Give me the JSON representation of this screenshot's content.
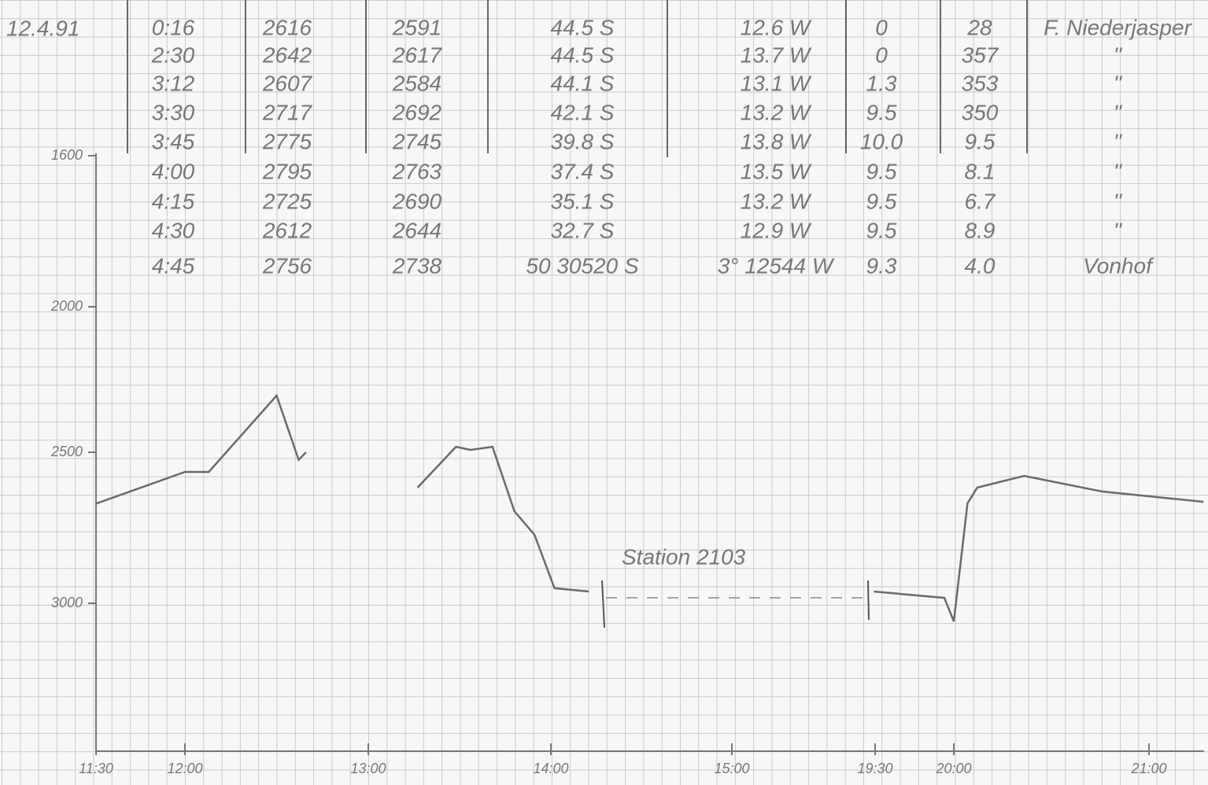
{
  "table": {
    "date": "12.4.91",
    "rows": [
      [
        "0:16",
        "2616",
        "2591",
        "44.5 S",
        "12.6 W",
        "0",
        "28",
        "F. Niederjasper"
      ],
      [
        "2:30",
        "2642",
        "2617",
        "44.5 S",
        "13.7 W",
        "0",
        "357",
        "\""
      ],
      [
        "3:12",
        "2607",
        "2584",
        "44.1 S",
        "13.1 W",
        "1.3",
        "353",
        "\""
      ],
      [
        "3:30",
        "2717",
        "2692",
        "42.1 S",
        "13.2 W",
        "9.5",
        "350",
        "\""
      ],
      [
        "3:45",
        "2775",
        "2745",
        "39.8 S",
        "13.8 W",
        "10.0",
        "9.5",
        "\""
      ],
      [
        "4:00",
        "2795",
        "2763",
        "37.4 S",
        "13.5 W",
        "9.5",
        "8.1",
        "\""
      ],
      [
        "4:15",
        "2725",
        "2690",
        "35.1 S",
        "13.2 W",
        "9.5",
        "6.7",
        "\""
      ],
      [
        "4:30",
        "2612",
        "2644",
        "32.7 S",
        "12.9 W",
        "9.5",
        "8.9",
        "\""
      ],
      [
        "4:45",
        "2756",
        "2738",
        "50 30520 S",
        "3° 12544 W",
        "9.3",
        "4.0",
        "Vonhof"
      ]
    ]
  },
  "chart_data": {
    "type": "line",
    "annotation": "Station 2103",
    "color": "#6a6a6a",
    "x": [
      11.5,
      12.0,
      12.13,
      12.5,
      12.62,
      12.66,
      null,
      13.27,
      13.48,
      13.56,
      13.68,
      13.8,
      13.91,
      14.02,
      14.21,
      null,
      19.46,
      19.94,
      20.0,
      20.07,
      20.12,
      20.36,
      20.76,
      21.28
    ],
    "values": [
      2670,
      2565,
      2565,
      2305,
      2525,
      2500,
      null,
      2617,
      2481,
      2492,
      2481,
      2695,
      2773,
      2950,
      2961,
      null,
      2961,
      2982,
      3060,
      2669,
      2617,
      2578,
      2630,
      2664
    ],
    "yticks": [
      1600,
      2000,
      2500,
      3000
    ],
    "xticks": [
      {
        "value": 11.5,
        "label": "11:30"
      },
      {
        "value": 12,
        "label": "12:00"
      },
      {
        "value": 13,
        "label": "13:00"
      },
      {
        "value": 14,
        "label": "14:00"
      },
      {
        "value": 15,
        "label": "15:00"
      },
      {
        "value": 19.5,
        "label": "19:30"
      },
      {
        "value": 20,
        "label": "20:00"
      },
      {
        "value": 21,
        "label": "21:00"
      }
    ]
  }
}
